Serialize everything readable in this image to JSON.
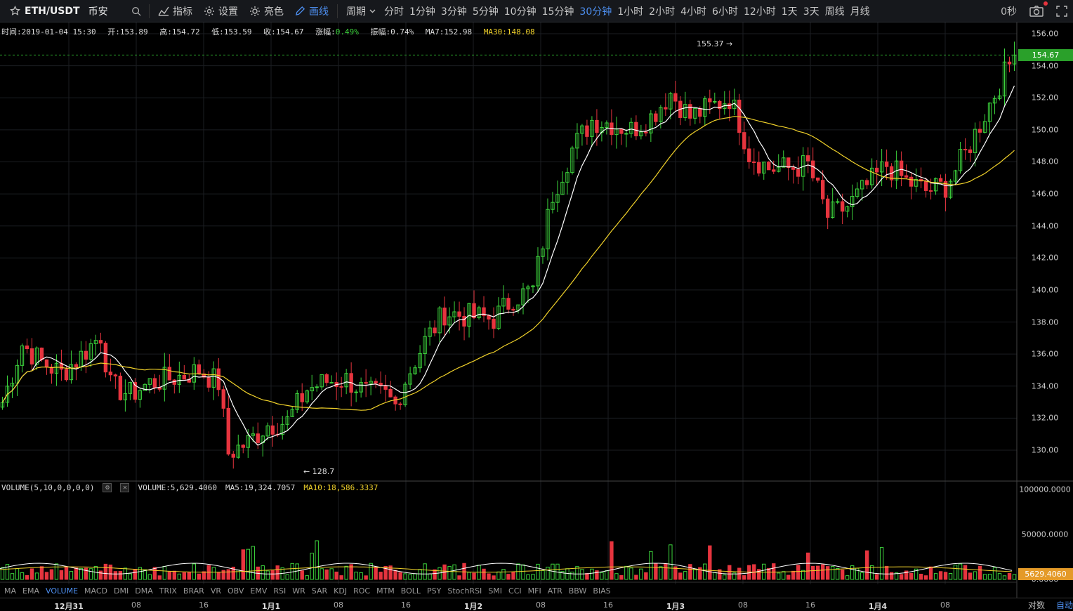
{
  "toolbar": {
    "pair": "ETH/USDT",
    "exchange": "币安",
    "buttons": {
      "indicators": "指标",
      "settings": "设置",
      "brightness": "亮色",
      "draw": "画线"
    },
    "period_menu": "周期",
    "periods": [
      "分时",
      "1分钟",
      "3分钟",
      "5分钟",
      "10分钟",
      "15分钟",
      "30分钟",
      "1小时",
      "2小时",
      "4小时",
      "6小时",
      "12小时",
      "1天",
      "3天",
      "周线",
      "月线"
    ],
    "active_period": "30分钟",
    "seconds": "0秒"
  },
  "info": {
    "time": "时间:2019-01-04 15:30",
    "open": "开:153.89",
    "high": "高:154.72",
    "low": "低:153.59",
    "close": "收:154.67",
    "change_label": "涨幅:",
    "change_value": "0.49%",
    "amplitude": "振幅:0.74%",
    "ma7": "MA7:152.98",
    "ma30": "MA30:148.08"
  },
  "price_axis": [
    "156.00",
    "154.00",
    "152.00",
    "150.00",
    "148.00",
    "146.00",
    "144.00",
    "142.00",
    "140.00",
    "138.00",
    "136.00",
    "134.00",
    "132.00",
    "130.00"
  ],
  "last_price": "154.67",
  "markers": {
    "high": "155.37 →",
    "low": "← 128.7"
  },
  "volume": {
    "title": "VOLUME(5,10,0,0,0,0)",
    "value": "VOLUME:5,629.4060",
    "ma5": "MA5:19,324.7057",
    "ma10": "MA10:18,586.3337",
    "axis": [
      "100000.0000",
      "50000.0000",
      "0.0000"
    ],
    "last": "5629.4060"
  },
  "indicator_tabs": [
    "MA",
    "EMA",
    "VOLUME",
    "MACD",
    "DMI",
    "DMA",
    "TRIX",
    "BRAR",
    "VR",
    "OBV",
    "EMV",
    "RSI",
    "WR",
    "SAR",
    "KDJ",
    "ROC",
    "MTM",
    "BOLL",
    "PSY",
    "StochRSI",
    "SMI",
    "CCI",
    "MFI",
    "ATR",
    "BBW",
    "BIAS"
  ],
  "active_indicator": "VOLUME",
  "time_axis": [
    "12月31",
    "08",
    "16",
    "1月1",
    "08",
    "16",
    "1月2",
    "08",
    "16",
    "1月3",
    "08",
    "16",
    "1月4",
    "08"
  ],
  "scale_buttons": [
    "对数",
    "自动"
  ],
  "colors": {
    "up": "#3cd33c",
    "down": "#e6343e",
    "ma7": "#ffffff",
    "ma30": "#f0d12a",
    "accent": "#4d8ff0"
  },
  "chart_data": {
    "type": "candlestick",
    "price_range": [
      128.5,
      156.5
    ],
    "x_count": 150,
    "close_path": [
      [
        0,
        133.0
      ],
      [
        4,
        136.6
      ],
      [
        8,
        135.5
      ],
      [
        12,
        134.8
      ],
      [
        16,
        135.9
      ],
      [
        20,
        137.2
      ],
      [
        22,
        134.0
      ],
      [
        26,
        133.5
      ],
      [
        30,
        134.2
      ],
      [
        36,
        134.6
      ],
      [
        40,
        135.0
      ],
      [
        44,
        134.2
      ],
      [
        46,
        129.8
      ],
      [
        50,
        130.5
      ],
      [
        54,
        131.6
      ],
      [
        58,
        131.8
      ],
      [
        62,
        133.8
      ],
      [
        66,
        134.3
      ],
      [
        70,
        134.4
      ],
      [
        74,
        133.6
      ],
      [
        78,
        133.4
      ],
      [
        80,
        132.8
      ],
      [
        82,
        134.4
      ],
      [
        86,
        136.8
      ],
      [
        90,
        138.6
      ],
      [
        94,
        138.4
      ],
      [
        100,
        138.2
      ],
      [
        104,
        139.5
      ],
      [
        108,
        140.0
      ],
      [
        112,
        146.0
      ],
      [
        116,
        148.8
      ],
      [
        120,
        150.6
      ],
      [
        124,
        150.4
      ],
      [
        128,
        150.0
      ],
      [
        132,
        150.8
      ],
      [
        136,
        152.3
      ],
      [
        140,
        150.8
      ],
      [
        144,
        151.4
      ],
      [
        148,
        152.0
      ],
      [
        150,
        150.5
      ],
      [
        152,
        148.5
      ],
      [
        156,
        147.6
      ],
      [
        160,
        147.6
      ],
      [
        164,
        147.8
      ],
      [
        168,
        144.6
      ],
      [
        172,
        145.2
      ],
      [
        176,
        146.5
      ],
      [
        180,
        147.8
      ],
      [
        184,
        146.8
      ],
      [
        188,
        146.2
      ],
      [
        192,
        146.5
      ],
      [
        196,
        148.5
      ],
      [
        200,
        151.0
      ],
      [
        204,
        153.5
      ],
      [
        206,
        154.67
      ]
    ],
    "high": 155.37,
    "low": 128.7
  }
}
